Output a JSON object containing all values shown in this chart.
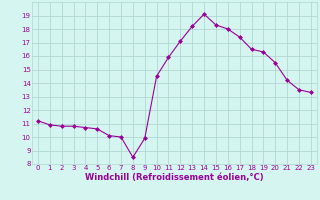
{
  "x": [
    0,
    1,
    2,
    3,
    4,
    5,
    6,
    7,
    8,
    9,
    10,
    11,
    12,
    13,
    14,
    15,
    16,
    17,
    18,
    19,
    20,
    21,
    22,
    23
  ],
  "y": [
    11.2,
    10.9,
    10.8,
    10.8,
    10.7,
    10.6,
    10.1,
    10.0,
    8.5,
    9.9,
    14.5,
    15.9,
    17.1,
    18.2,
    19.1,
    18.3,
    18.0,
    17.4,
    16.5,
    16.3,
    15.5,
    14.2,
    13.5,
    13.3
  ],
  "line_color": "#990099",
  "marker": "D",
  "marker_size": 2.0,
  "bg_color": "#d5f5f0",
  "grid_color": "#b0d8d0",
  "xlabel": "Windchill (Refroidissement éolien,°C)",
  "xlabel_color": "#990099",
  "xlabel_fontsize": 6.0,
  "tick_color": "#990099",
  "tick_fontsize": 5.0,
  "ylim": [
    8,
    20
  ],
  "xlim": [
    -0.5,
    23.5
  ],
  "yticks": [
    8,
    9,
    10,
    11,
    12,
    13,
    14,
    15,
    16,
    17,
    18,
    19
  ],
  "xticks": [
    0,
    1,
    2,
    3,
    4,
    5,
    6,
    7,
    8,
    9,
    10,
    11,
    12,
    13,
    14,
    15,
    16,
    17,
    18,
    19,
    20,
    21,
    22,
    23
  ]
}
